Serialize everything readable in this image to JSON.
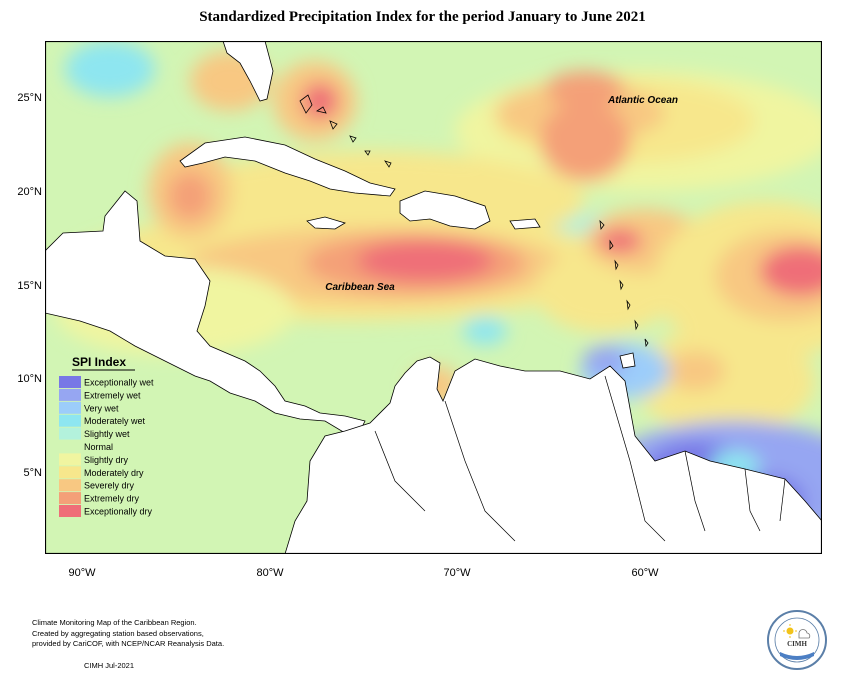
{
  "title": "Standardized Precipitation Index for the period January to June 2021",
  "map": {
    "ocean_labels": [
      "Atlantic Ocean",
      "Caribbean Sea"
    ],
    "lat_ticks": [
      "25°N",
      "20°N",
      "15°N",
      "10°N",
      "5°N"
    ],
    "lon_ticks": [
      "90°W",
      "80°W",
      "70°W",
      "60°W"
    ]
  },
  "legend": {
    "title": "SPI Index",
    "items": [
      {
        "label": "Exceptionally wet",
        "color": "#7878e6"
      },
      {
        "label": "Extremely wet",
        "color": "#96a6f2"
      },
      {
        "label": "Very wet",
        "color": "#9ccdfa"
      },
      {
        "label": "Moderately wet",
        "color": "#8ee6f0"
      },
      {
        "label": "Slightly wet",
        "color": "#b3f2dc"
      },
      {
        "label": "Normal",
        "color": "#d2f5b4"
      },
      {
        "label": "Slightly dry",
        "color": "#f0f5a0"
      },
      {
        "label": "Moderately dry",
        "color": "#f7e78c"
      },
      {
        "label": "Severely dry",
        "color": "#f8c882"
      },
      {
        "label": "Extremely dry",
        "color": "#f4a078"
      },
      {
        "label": "Exceptionally dry",
        "color": "#ef6e78"
      }
    ]
  },
  "footer": {
    "lines": [
      "Climate Monitoring Map of the Caribbean Region.",
      "Created by aggregating station based observations,",
      "provided by CariCOF, with NCEP/NCAR Reanalysis Data."
    ],
    "date": "CIMH Jul-2021"
  },
  "logo": {
    "text": "CIMH",
    "icon": "cimh-sun-cloud-logo-icon"
  }
}
